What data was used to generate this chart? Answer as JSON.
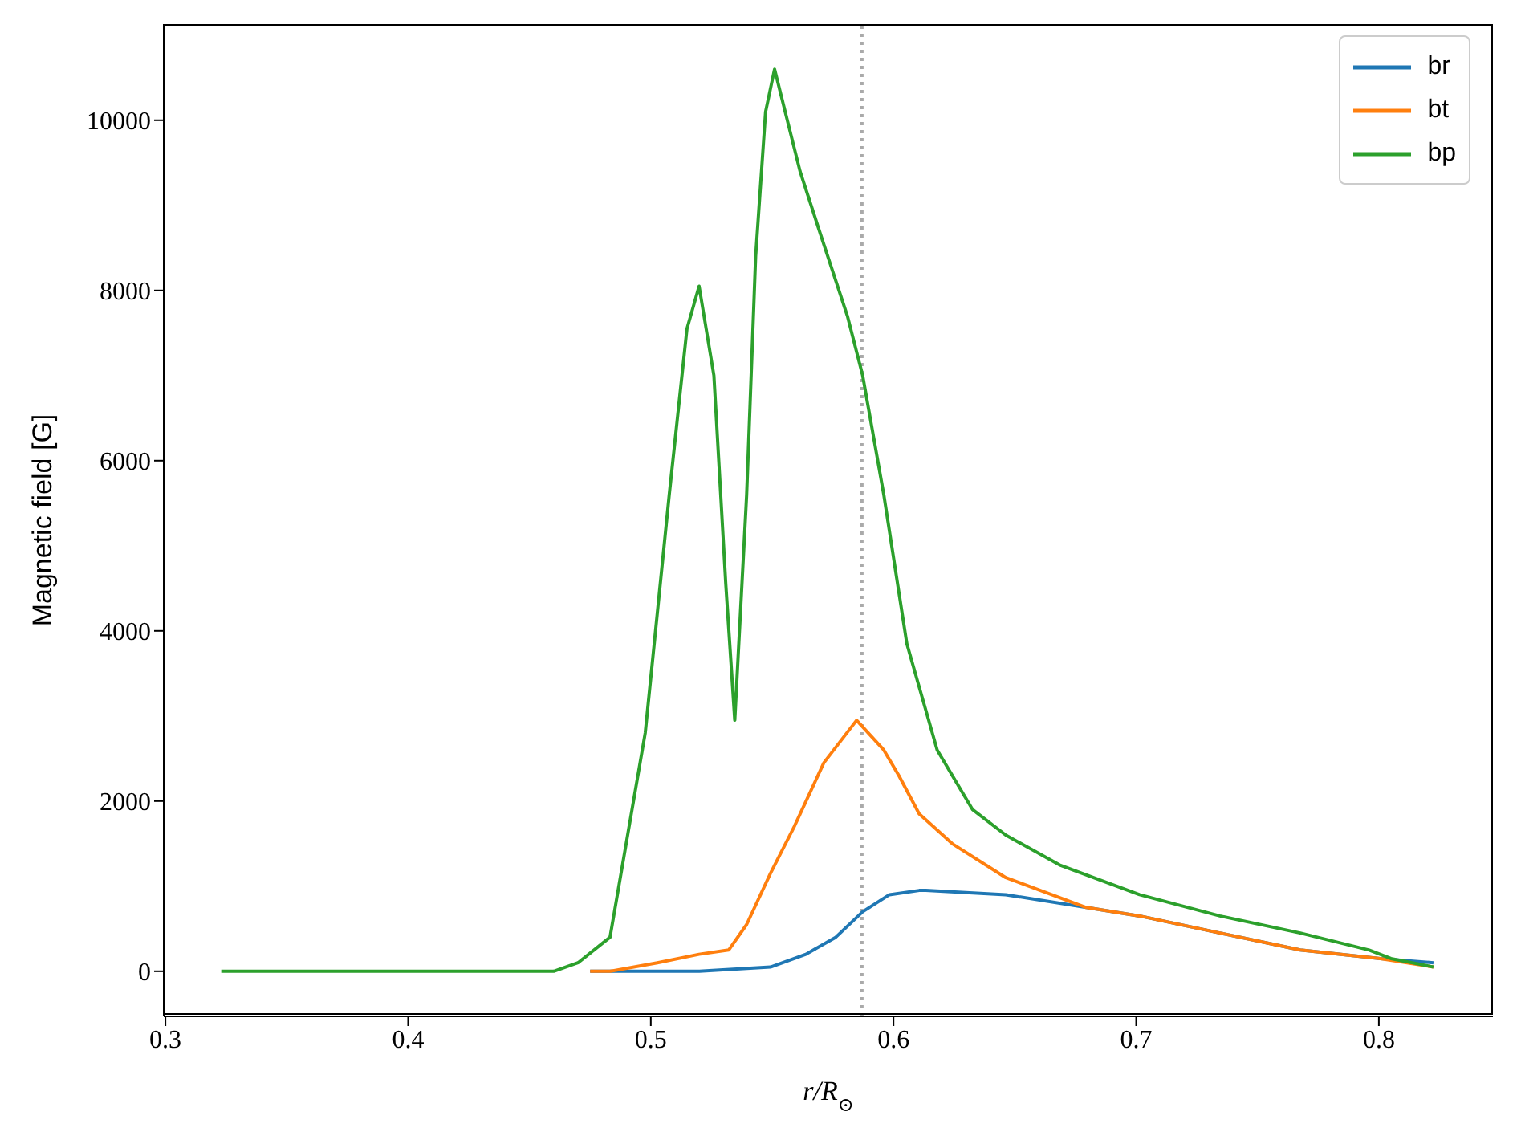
{
  "chart_data": {
    "type": "line",
    "xlabel": "r/R$_{⊙}$",
    "ylabel": "Magnetic field [G]",
    "xlim": [
      0.2993,
      0.847
    ],
    "ylim": [
      -530,
      11130
    ],
    "xticks": [
      0.3,
      0.4,
      0.5,
      0.6,
      0.7,
      0.8
    ],
    "yticks": [
      0,
      2000,
      4000,
      6000,
      8000,
      10000
    ],
    "legend": "top right",
    "marker": "none",
    "line_style": "solid",
    "ref_lines": [
      {
        "axis": "x",
        "value": 0.587,
        "color": "#aaaaaa",
        "line_style": "dotted"
      }
    ],
    "series": [
      {
        "name": "br",
        "color": "#1f77b4",
        "x": [
          0.475,
          0.52,
          0.5493,
          0.5639,
          0.5762,
          0.5873,
          0.5983,
          0.6106,
          0.6133,
          0.6463,
          0.6794,
          0.7014,
          0.7345,
          0.7676,
          0.8006,
          0.8225
        ],
        "values": [
          0,
          0,
          50,
          200,
          400,
          700,
          900,
          950,
          950,
          900,
          750,
          650,
          450,
          250,
          150,
          100
        ]
      },
      {
        "name": "bt",
        "color": "#ff7f0e",
        "x": [
          0.475,
          0.4832,
          0.5027,
          0.5199,
          0.5321,
          0.5395,
          0.5493,
          0.5591,
          0.5713,
          0.5848,
          0.596,
          0.6022,
          0.6106,
          0.6242,
          0.6463,
          0.6794,
          0.7014,
          0.7345,
          0.7676,
          0.8006,
          0.8225
        ],
        "values": [
          0,
          0,
          100,
          200,
          250,
          550,
          1150,
          1700,
          2450,
          2950,
          2600,
          2300,
          1850,
          1500,
          1100,
          750,
          650,
          450,
          250,
          150,
          50
        ]
      },
      {
        "name": "bp",
        "color": "#2ca02c",
        "x": [
          0.323,
          0.4,
          0.46,
          0.47,
          0.4832,
          0.4977,
          0.5076,
          0.5149,
          0.5199,
          0.526,
          0.5309,
          0.5346,
          0.5395,
          0.5432,
          0.5473,
          0.551,
          0.5615,
          0.5689,
          0.581,
          0.5873,
          0.596,
          0.6055,
          0.618,
          0.6326,
          0.6463,
          0.6684,
          0.7014,
          0.7345,
          0.7676,
          0.796,
          0.805,
          0.8225
        ],
        "values": [
          0,
          0,
          0,
          100,
          400,
          2800,
          5600,
          7550,
          8050,
          7000,
          4550,
          2950,
          5600,
          8400,
          10100,
          10600,
          9400,
          8750,
          7700,
          7000,
          5600,
          3850,
          2600,
          1900,
          1600,
          1250,
          900,
          650,
          450,
          250,
          150,
          50
        ]
      }
    ]
  }
}
